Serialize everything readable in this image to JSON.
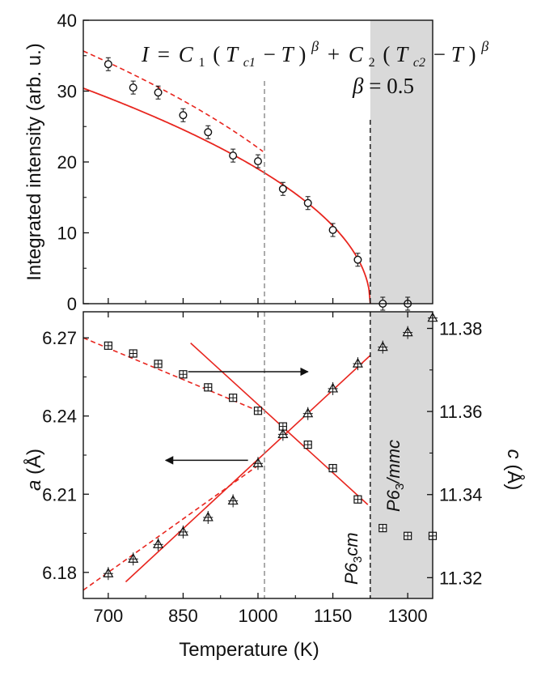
{
  "chart_data": [
    {
      "type": "scatter",
      "panel": "top",
      "xlabel": "",
      "ylabel": "Integrated intensity (arb. u.)",
      "xlim": [
        650,
        1350
      ],
      "ylim": [
        0,
        40
      ],
      "yticks": [
        0,
        10,
        20,
        30,
        40
      ],
      "formula": {
        "lhs": "I",
        "eq": "=",
        "c1": "C",
        "c1sub": "1",
        "tc1": "T",
        "tc1sub": "c1",
        "minus": "−",
        "t": "T",
        "beta": "β",
        "plus": "+",
        "c2": "C",
        "c2sub": "2",
        "tc2": "T",
        "tc2sub": "c2",
        "open": "(",
        "close": ")"
      },
      "beta_label": {
        "symbol": "β",
        "eq": " = ",
        "value": "0.5"
      },
      "series": [
        {
          "marker": "circle",
          "points": [
            [
              700,
              33.8
            ],
            [
              750,
              30.5
            ],
            [
              800,
              29.8
            ],
            [
              850,
              26.6
            ],
            [
              900,
              24.2
            ],
            [
              950,
              20.9
            ],
            [
              1000,
              20.1
            ],
            [
              1050,
              16.2
            ],
            [
              1100,
              14.2
            ],
            [
              1150,
              10.4
            ],
            [
              1200,
              6.2
            ],
            [
              1250,
              0
            ],
            [
              1300,
              0
            ]
          ]
        }
      ],
      "fit_dashed": {
        "color": "#e8261f",
        "x": [
          650,
          1010
        ],
        "params": {
          "C": 1.5,
          "Tc": 1215,
          "beta": 0.5
        }
      },
      "fit_solid": {
        "color": "#e8261f",
        "x": [
          650,
          1225
        ],
        "params": {
          "C": 1.268,
          "Tc": 1225,
          "beta": 0.5
        }
      },
      "vline_dashed_gray": 1013,
      "vline_dashed_black": 1225,
      "shaded_from": 1225
    },
    {
      "type": "scatter",
      "panel": "bottom",
      "xlabel": "Temperature (K)",
      "ylabel_left": {
        "symbol": "a",
        "unit": " (Å)"
      },
      "ylabel_right": {
        "symbol": "c",
        "unit": " (Å)"
      },
      "xlim": [
        650,
        1350
      ],
      "xticks": [
        700,
        850,
        1000,
        1150,
        1300
      ],
      "ylim_left": [
        6.17,
        6.28
      ],
      "yticks_left": [
        6.18,
        6.21,
        6.24,
        6.27
      ],
      "ylim_right": [
        11.315,
        11.384
      ],
      "yticks_right": [
        11.32,
        11.34,
        11.36,
        11.38
      ],
      "series": [
        {
          "name": "a",
          "marker": "boxplus",
          "axis": "left",
          "points": [
            [
              700,
              6.267
            ],
            [
              750,
              6.264
            ],
            [
              800,
              6.26
            ],
            [
              850,
              6.256
            ],
            [
              900,
              6.251
            ],
            [
              950,
              6.247
            ],
            [
              1000,
              6.242
            ],
            [
              1050,
              6.236
            ],
            [
              1100,
              6.229
            ],
            [
              1150,
              6.22
            ],
            [
              1200,
              6.208
            ],
            [
              1250,
              6.197
            ],
            [
              1300,
              6.194
            ],
            [
              1350,
              6.194
            ]
          ]
        },
        {
          "name": "c",
          "marker": "triangle",
          "axis": "right",
          "points": [
            [
              700,
              11.321
            ],
            [
              750,
              11.3245
            ],
            [
              800,
              11.328
            ],
            [
              850,
              11.331
            ],
            [
              900,
              11.3345
            ],
            [
              950,
              11.3385
            ],
            [
              1000,
              11.3475
            ],
            [
              1050,
              11.3545
            ],
            [
              1100,
              11.3595
            ],
            [
              1150,
              11.3655
            ],
            [
              1200,
              11.3715
            ],
            [
              1250,
              11.3755
            ],
            [
              1300,
              11.379
            ],
            [
              1350,
              11.3825
            ]
          ]
        }
      ],
      "fit_a_dashed": {
        "color": "#e8261f",
        "axis": "left",
        "points": [
          [
            650,
            6.27
          ],
          [
            1000,
            6.242
          ]
        ]
      },
      "fit_a_solid": {
        "color": "#e8261f",
        "axis": "left",
        "points": [
          [
            865,
            6.268
          ],
          [
            1220,
            6.206
          ]
        ]
      },
      "fit_c_dashed": {
        "color": "#e8261f",
        "axis": "right",
        "points": [
          [
            650,
            11.317
          ],
          [
            1000,
            11.347
          ]
        ]
      },
      "fit_c_solid": {
        "color": "#e8261f",
        "axis": "right",
        "points": [
          [
            735,
            11.319
          ],
          [
            1225,
            11.3735
          ]
        ]
      },
      "arrow_right": {
        "from": [
          860,
          6.257
        ],
        "to": [
          1100,
          6.257
        ]
      },
      "arrow_left": {
        "from": [
          980,
          6.223
        ],
        "to": [
          815,
          6.223
        ]
      },
      "phase_labels": [
        {
          "base": "P6",
          "sub": "3",
          "rest": "cm"
        },
        {
          "base": "P6",
          "sub": "3",
          "rest": "/mmc"
        }
      ],
      "vline_dashed_gray": 1013,
      "vline_dashed_black": 1225,
      "shaded_from": 1225
    }
  ]
}
